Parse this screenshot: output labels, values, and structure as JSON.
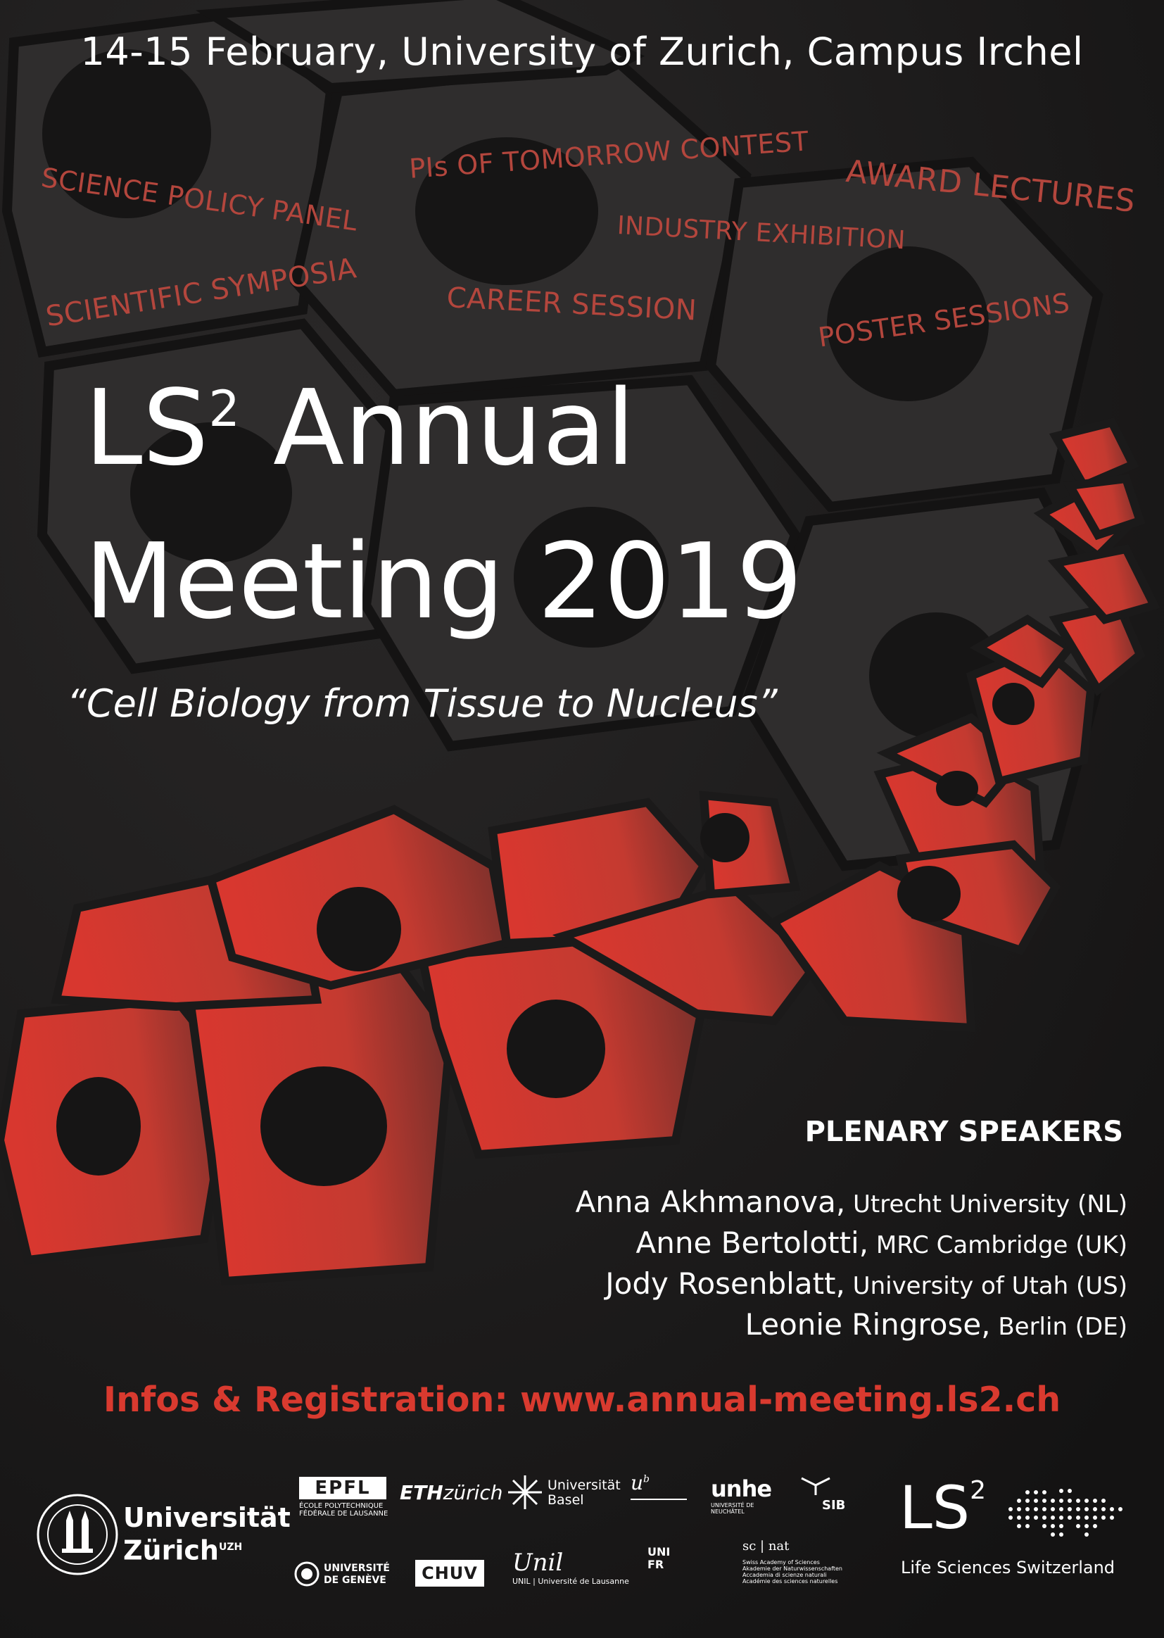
{
  "header": {
    "date_location": "14-15 February, University of Zurich, Campus Irchel"
  },
  "topics": [
    "SCIENCE POLICY PANEL",
    "PIs OF TOMORROW CONTEST",
    "AWARD LECTURES",
    "INDUSTRY EXHIBITION",
    "SCIENTIFIC SYMPOSIA",
    "CAREER SESSION",
    "POSTER SESSIONS"
  ],
  "title": {
    "line1_prefix": "LS",
    "line1_sup": "2",
    "line1_suffix": " Annual",
    "line2": "Meeting 2019"
  },
  "subtitle": "“Cell Biology from Tissue to Nucleus”",
  "speakers": {
    "heading": "PLENARY SPEAKERS",
    "items": [
      {
        "name": "Anna Akhmanova,",
        "affiliation": " Utrecht University (NL)"
      },
      {
        "name": "Anne Bertolotti,",
        "affiliation": " MRC Cambridge (UK)"
      },
      {
        "name": "Jody Rosenblatt,",
        "affiliation": " University of Utah (US)"
      },
      {
        "name": "Leonie Ringrose,",
        "affiliation": " Berlin (DE)"
      }
    ]
  },
  "registration": "Infos & Registration: www.annual-meeting.ls2.ch",
  "logos": {
    "uzh": {
      "line1": "Universität",
      "line2": "Zürich",
      "tag": "UZH"
    },
    "epfl": {
      "mark": "EPFL",
      "line1": "ÉCOLE POLYTECHNIQUE",
      "line2": "FÉDÉRALE DE LAUSANNE"
    },
    "eth": {
      "bold": "ETH",
      "light": "zürich"
    },
    "unibas": {
      "line1": "Universität",
      "line2": "Basel"
    },
    "unibe": {
      "mark": "u",
      "sup": "b"
    },
    "unine": {
      "mark": "unhe",
      "line1": "UNIVERSITÉ DE",
      "line2": "NEUCHÂTEL"
    },
    "sib": {
      "mark": "SIB"
    },
    "unige": {
      "line1": "UNIVERSITÉ",
      "line2": "DE GENÈVE"
    },
    "chuv": {
      "mark": "CHUV"
    },
    "unil": {
      "mark": "Unil",
      "line": "UNIL | Université de Lausanne"
    },
    "unifr": {
      "line1": "UNI",
      "line2": "FR"
    },
    "scnat": {
      "mark": "sc | nat",
      "line1": "Swiss Academy of Sciences",
      "line2": "Akademie der Naturwissenschaften",
      "line3": "Accademia di scienze naturali",
      "line4": "Académie des sciences naturelles"
    },
    "ls2": {
      "mark": "LS",
      "sup": "2",
      "tagline": "Life Sciences Switzerland"
    }
  }
}
